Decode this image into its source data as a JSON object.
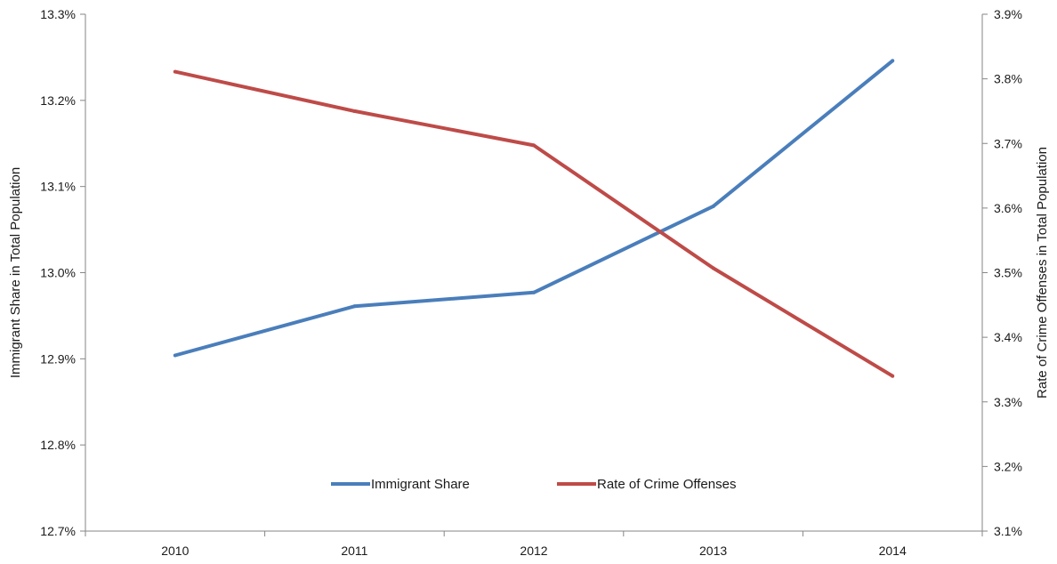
{
  "chart_data": {
    "type": "line",
    "x": [
      "2010",
      "2011",
      "2012",
      "2013",
      "2014"
    ],
    "series": [
      {
        "name": "Immigrant Share",
        "axis": "left",
        "color": "#4a7ebb",
        "values": [
          12.904,
          12.961,
          12.977,
          13.077,
          13.246
        ]
      },
      {
        "name": "Rate of Crime Offenses",
        "axis": "right",
        "color": "#be4b48",
        "values": [
          3.811,
          3.75,
          3.697,
          3.507,
          3.34
        ]
      }
    ],
    "y_left": {
      "label": "Immigrant Share in Total Population",
      "range": [
        12.7,
        13.3
      ],
      "ticks": [
        "12.7%",
        "12.8%",
        "12.9%",
        "13.0%",
        "13.1%",
        "13.2%",
        "13.3%"
      ]
    },
    "y_right": {
      "label": "Rate of Crime Offenses in Total Population",
      "range": [
        3.1,
        3.9
      ],
      "ticks": [
        "3.1%",
        "3.2%",
        "3.3%",
        "3.4%",
        "3.5%",
        "3.6%",
        "3.7%",
        "3.8%",
        "3.9%"
      ]
    },
    "legend": {
      "position": "bottom-center",
      "items": [
        "Immigrant Share",
        "Rate of Crime Offenses"
      ]
    },
    "axis_color": "#868686",
    "grid": false
  }
}
